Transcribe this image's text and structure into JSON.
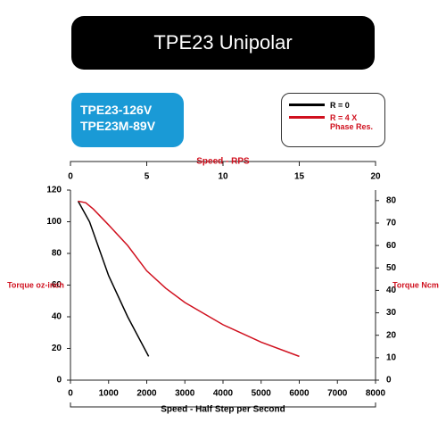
{
  "chart_data": {
    "type": "line",
    "title": "TPE23 Unipolar",
    "model_labels": [
      "TPE23-126V",
      "TPE23M-89V"
    ],
    "xlabel": "Speed - Half Step per Second",
    "ylabel": "Torque oz-inch",
    "y2label": "Torque Ncm",
    "x2label": "Speed - RPS",
    "xlim": [
      0,
      8000
    ],
    "xticks": [
      0,
      1000,
      2000,
      3000,
      4000,
      5000,
      6000,
      7000,
      8000
    ],
    "ylim": [
      0,
      120
    ],
    "yticks": [
      0,
      20,
      40,
      60,
      80,
      100,
      120
    ],
    "y2lim": [
      0,
      84.7
    ],
    "y2ticks": [
      0,
      10,
      20,
      30,
      40,
      50,
      60,
      70,
      80
    ],
    "x2lim": [
      0,
      20
    ],
    "x2ticks": [
      0,
      5,
      10,
      15,
      20
    ],
    "series": [
      {
        "name": "R = 0",
        "color": "#000000",
        "x": [
          200,
          500,
          1000,
          1500,
          2050
        ],
        "values": [
          113,
          100,
          66,
          40,
          15
        ]
      },
      {
        "name": "R = 4 X Phase Res.",
        "color": "#d0101e",
        "x": [
          200,
          400,
          600,
          1000,
          1500,
          2000,
          2500,
          3000,
          4000,
          5000,
          6000
        ],
        "values": [
          113,
          112,
          108,
          98,
          85,
          69,
          58,
          49,
          35,
          24,
          15
        ]
      }
    ]
  }
}
